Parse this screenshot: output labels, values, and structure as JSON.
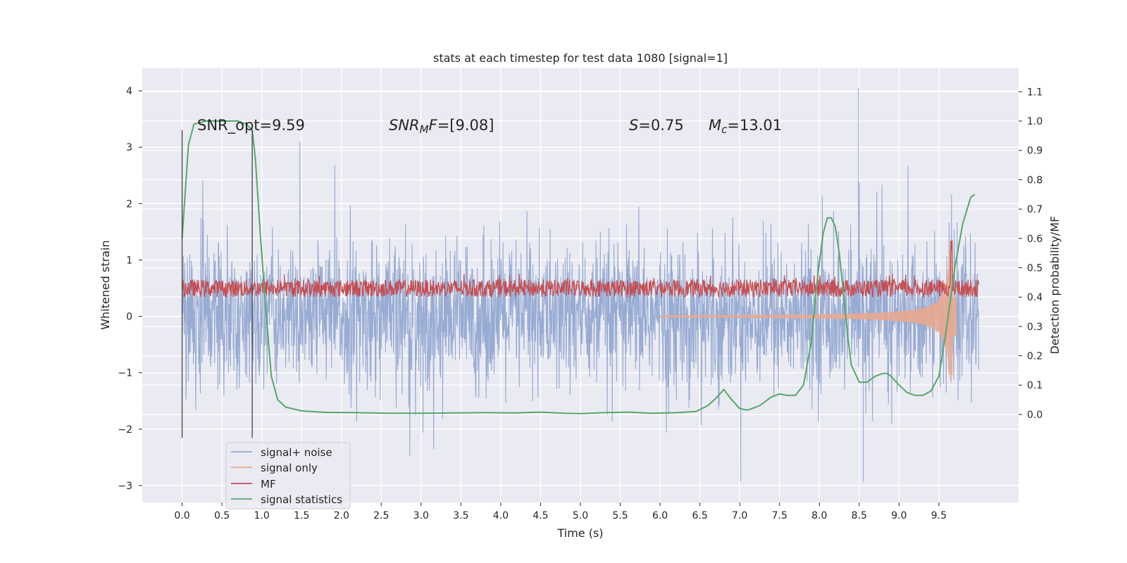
{
  "chart_data": {
    "type": "line",
    "title": "stats at each timestep for test data 1080 [signal=1]",
    "xlabel": "Time (s)",
    "ylabel_left": "Whitened strain",
    "ylabel_right": "Detection probability/MF",
    "xlim": [
      -0.5,
      10.5
    ],
    "ylim_left": [
      -3.3,
      4.4
    ],
    "ylim_right": [
      -0.3,
      1.18
    ],
    "x_ticks": [
      "0.0",
      "0.5",
      "1.0",
      "1.5",
      "2.0",
      "2.5",
      "3.0",
      "3.5",
      "4.0",
      "4.5",
      "5.0",
      "5.5",
      "6.0",
      "6.5",
      "7.0",
      "7.5",
      "8.0",
      "8.5",
      "9.0",
      "9.5"
    ],
    "y_ticks_left": [
      "4",
      "3",
      "2",
      "1",
      "0",
      "−1",
      "−2",
      "−3"
    ],
    "y_ticks_right": [
      "1.1",
      "1.0",
      "0.9",
      "0.8",
      "0.7",
      "0.6",
      "0.5",
      "0.4",
      "0.3",
      "0.2",
      "0.1",
      "0.0"
    ],
    "grid": true,
    "legend_placement": "lower-left",
    "annotations": {
      "snr_opt": "SNR_opt=9.59",
      "snr_mf_sym": "SNR",
      "snr_mf_sub": "M",
      "snr_mf_tail": "F",
      "snr_mf_value": "=[9.08]",
      "s_sym": "S",
      "s_value": "=0.75",
      "mc_sym": "M",
      "mc_sub": "c",
      "mc_value": "=13.01"
    },
    "vertical_markers": [
      {
        "x": 0.0,
        "y_range": [
          -2.15,
          3.3
        ]
      },
      {
        "x": 0.88,
        "y_range": [
          -2.15,
          3.3
        ]
      }
    ],
    "series": [
      {
        "name": "signal+ noise",
        "axis": "left",
        "color": "#92a8d1",
        "style": "dense noise",
        "x_range": [
          0.0,
          10.0
        ],
        "amplitude_std": 0.62,
        "spike_max": 4.05,
        "spike_max_at": 8.49,
        "min": -2.93,
        "min_at": 8.55
      },
      {
        "name": "signal only",
        "axis": "left",
        "color": "#e8a990",
        "style": "chirp",
        "x_range": [
          6.0,
          9.72
        ],
        "start_amplitude": 0.02,
        "peak_amplitude": 1.2,
        "peak_at": 9.65
      },
      {
        "name": "MF",
        "axis": "right",
        "color": "#c44e52",
        "style": "noisy band",
        "x_range": [
          0.0,
          10.0
        ],
        "baseline": 0.42,
        "band": [
          0.4,
          0.46
        ],
        "peak": 0.6,
        "peak_at": 9.66
      },
      {
        "name": "signal statistics",
        "axis": "right",
        "color": "#55a868",
        "style": "line",
        "x": [
          0.0,
          0.08,
          0.15,
          0.3,
          0.5,
          0.7,
          0.8,
          0.88,
          0.92,
          0.98,
          1.05,
          1.12,
          1.2,
          1.3,
          1.5,
          1.8,
          2.2,
          2.6,
          3.0,
          3.4,
          3.8,
          4.2,
          4.5,
          4.8,
          5.0,
          5.3,
          5.6,
          5.9,
          6.2,
          6.45,
          6.6,
          6.7,
          6.8,
          6.9,
          7.0,
          7.1,
          7.25,
          7.4,
          7.5,
          7.6,
          7.7,
          7.8,
          7.9,
          7.95,
          8.0,
          8.05,
          8.1,
          8.15,
          8.2,
          8.25,
          8.3,
          8.35,
          8.4,
          8.5,
          8.6,
          8.7,
          8.8,
          8.85,
          8.9,
          9.0,
          9.1,
          9.2,
          9.3,
          9.4,
          9.5,
          9.6,
          9.7,
          9.8,
          9.9,
          9.95
        ],
        "y": [
          0.6,
          0.92,
          0.99,
          1.0,
          1.0,
          1.0,
          0.99,
          0.97,
          0.87,
          0.62,
          0.36,
          0.13,
          0.05,
          0.025,
          0.012,
          0.007,
          0.006,
          0.004,
          0.004,
          0.005,
          0.006,
          0.005,
          0.008,
          0.004,
          0.003,
          0.006,
          0.008,
          0.004,
          0.006,
          0.01,
          0.03,
          0.055,
          0.085,
          0.05,
          0.02,
          0.015,
          0.03,
          0.06,
          0.07,
          0.065,
          0.065,
          0.1,
          0.25,
          0.4,
          0.52,
          0.62,
          0.67,
          0.67,
          0.64,
          0.55,
          0.42,
          0.28,
          0.17,
          0.11,
          0.11,
          0.13,
          0.14,
          0.14,
          0.13,
          0.1,
          0.075,
          0.065,
          0.065,
          0.08,
          0.13,
          0.3,
          0.5,
          0.65,
          0.74,
          0.75
        ]
      }
    ]
  }
}
